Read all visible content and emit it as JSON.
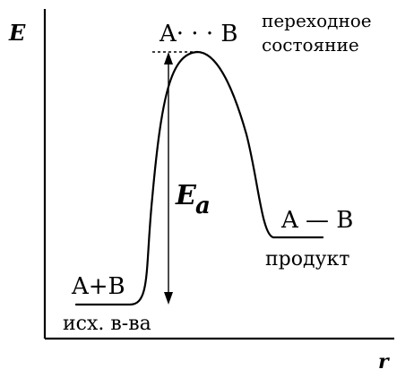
{
  "axes": {
    "y_label": "E",
    "x_label": "r"
  },
  "labels": {
    "transition_species": "A· · · B",
    "transition_state_line1": "переходное",
    "transition_state_line2": "состояние",
    "activation_energy_main": "E",
    "activation_energy_sub": "a",
    "product_species": "A — B",
    "product_name": "продукт",
    "reactants_species": "A+B",
    "reactants_name": "исх. в-ва"
  },
  "colors": {
    "ink": "#000000",
    "background": "#ffffff"
  }
}
